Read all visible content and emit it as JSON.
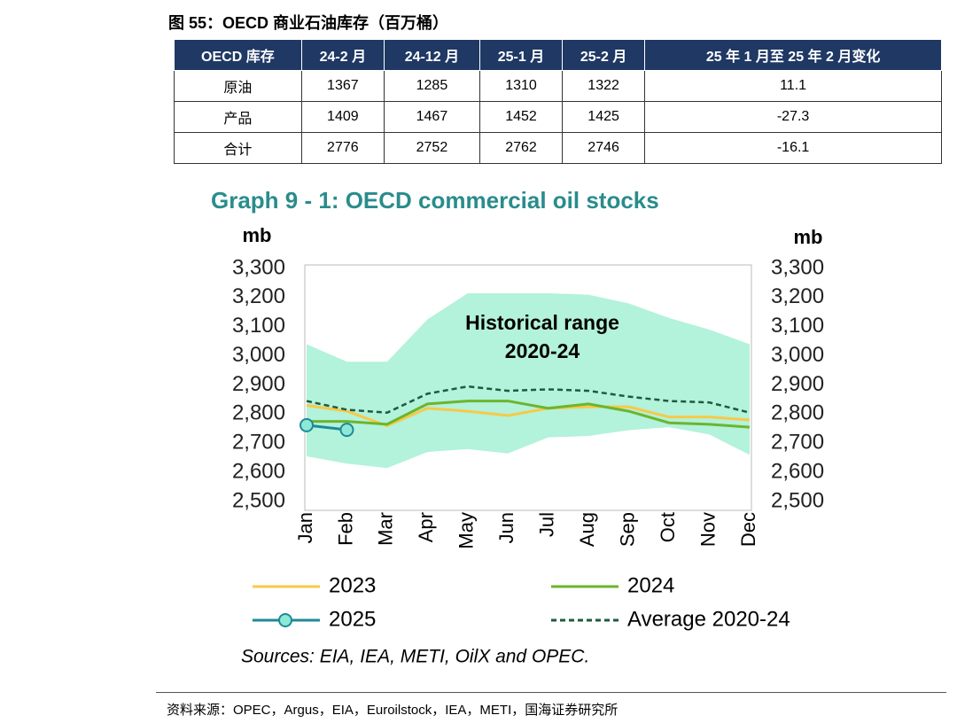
{
  "header": {
    "title": "图 55：OECD 商业石油库存（百万桶）"
  },
  "table": {
    "columns": [
      "OECD 库存",
      "24-2 月",
      "24-12 月",
      "25-1 月",
      "25-2 月",
      "25 年 1 月至 25 年 2 月变化"
    ],
    "rows": [
      [
        "原油",
        "1367",
        "1285",
        "1310",
        "1322",
        "11.1"
      ],
      [
        "产品",
        "1409",
        "1467",
        "1452",
        "1425",
        "-27.3"
      ],
      [
        "合计",
        "2776",
        "2752",
        "2762",
        "2746",
        "-16.1"
      ]
    ]
  },
  "chart_data": {
    "type": "line",
    "title": "Graph 9 - 1: OECD commercial oil stocks",
    "y_label": "mb",
    "y2_label": "mb",
    "annotations": [
      "Historical range",
      "2020-24"
    ],
    "categories": [
      "Jan",
      "Feb",
      "Mar",
      "Apr",
      "May",
      "Jun",
      "Jul",
      "Aug",
      "Sep",
      "Oct",
      "Nov",
      "Dec"
    ],
    "range": {
      "color": "#b3f2db",
      "upper": [
        3040,
        2980,
        2980,
        3125,
        3215,
        3215,
        3215,
        3210,
        3180,
        3130,
        3090,
        3040
      ],
      "lower": [
        2655,
        2630,
        2615,
        2670,
        2680,
        2665,
        2720,
        2725,
        2745,
        2755,
        2730,
        2660
      ]
    },
    "series": [
      {
        "name": "2023",
        "color": "#f7c948",
        "style": "solid",
        "values": [
          2830,
          2810,
          2760,
          2820,
          2810,
          2795,
          2820,
          2825,
          2825,
          2790,
          2790,
          2780
        ]
      },
      {
        "name": "2024",
        "color": "#6cb52d",
        "style": "solid",
        "values": [
          2775,
          2775,
          2765,
          2835,
          2845,
          2845,
          2820,
          2835,
          2810,
          2770,
          2765,
          2755
        ]
      },
      {
        "name": "2025",
        "color": "#1d8a98",
        "style": "markers",
        "values": [
          2762,
          2746,
          null,
          null,
          null,
          null,
          null,
          null,
          null,
          null,
          null,
          null
        ]
      },
      {
        "name": "Average 2020-24",
        "color": "#1f5a3c",
        "style": "dashed",
        "values": [
          2845,
          2815,
          2805,
          2870,
          2895,
          2880,
          2885,
          2880,
          2860,
          2845,
          2840,
          2805
        ]
      }
    ],
    "ylim": [
      2500,
      3300
    ],
    "yticks": [
      {
        "value": 2500,
        "label": "2,500"
      },
      {
        "value": 2600,
        "label": "2,600"
      },
      {
        "value": 2700,
        "label": "2,700"
      },
      {
        "value": 2800,
        "label": "2,800"
      },
      {
        "value": 2900,
        "label": "2,900"
      },
      {
        "value": 3000,
        "label": "3,000"
      },
      {
        "value": 3100,
        "label": "3,100"
      },
      {
        "value": 3200,
        "label": "3,200"
      },
      {
        "value": 3300,
        "label": "3,300"
      }
    ],
    "y2lim": [
      2500,
      3300
    ],
    "y2ticks": [
      {
        "value": 2500,
        "label": "2,500"
      },
      {
        "value": 2600,
        "label": "2,600"
      },
      {
        "value": 2700,
        "label": "2,700"
      },
      {
        "value": 2800,
        "label": "2,800"
      },
      {
        "value": 2900,
        "label": "2,900"
      },
      {
        "value": 3000,
        "label": "3,000"
      },
      {
        "value": 3100,
        "label": "3,100"
      },
      {
        "value": 3200,
        "label": "3,200"
      },
      {
        "value": 3300,
        "label": "3,300"
      }
    ],
    "grid": false,
    "note": "Sources: EIA, IEA, METI, OilX and OPEC."
  },
  "footer": {
    "source": "资料来源：OPEC，Argus，EIA，Euroilstock，IEA，METI，国海证券研究所"
  }
}
